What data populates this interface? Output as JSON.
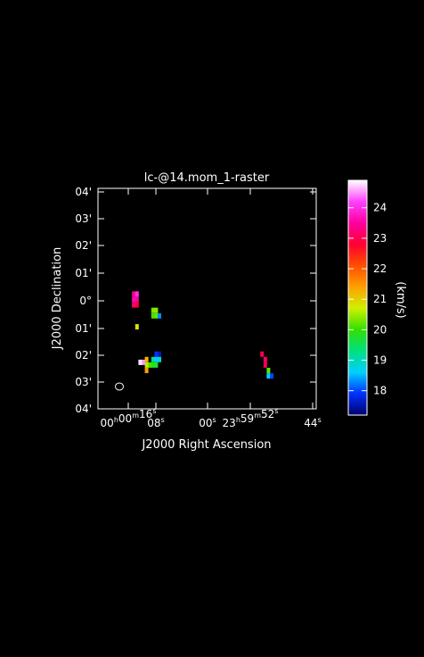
{
  "chart_data": {
    "type": "heatmap",
    "title": "lc-@14.mom_1-raster",
    "xlabel": "J2000 Right Ascension",
    "ylabel": "J2000 Declination",
    "x_ticks": [
      {
        "label": "00h00m16s"
      },
      {
        "label": "08s"
      },
      {
        "label": "00s"
      },
      {
        "label": "23h59m52s"
      },
      {
        "label": "44s"
      }
    ],
    "y_ticks": [
      "04'",
      "03'",
      "02'",
      "01'",
      "0°",
      "01'",
      "02'",
      "03'",
      "04'"
    ],
    "colorbar": {
      "label": "(km/s)",
      "range": [
        17.2,
        24.9
      ],
      "ticks": [
        18,
        19,
        20,
        21,
        22,
        23,
        24
      ],
      "stops": [
        "#00006a",
        "#0030ff",
        "#00d0ff",
        "#00e080",
        "#30e000",
        "#d0f000",
        "#ffa000",
        "#ff5000",
        "#ff0030",
        "#ff00a0",
        "#ff40ff",
        "#ffffff"
      ]
    },
    "beam": {
      "shape": "ellipse"
    },
    "pixels": [
      {
        "ra": 13.8,
        "dec": 0.25,
        "v": 23.4
      },
      {
        "ra": 13.8,
        "dec": 0.05,
        "v": 23.6
      },
      {
        "ra": 13.8,
        "dec": -0.15,
        "v": 23.2
      },
      {
        "ra": 13.2,
        "dec": 0.25,
        "v": 24.0
      },
      {
        "ra": 13.2,
        "dec": 0.05,
        "v": 23.5
      },
      {
        "ra": 13.2,
        "dec": -0.15,
        "v": 22.8
      },
      {
        "ra": 13.2,
        "dec": -0.95,
        "v": 20.8
      },
      {
        "ra": 10.2,
        "dec": -0.35,
        "v": 20.3
      },
      {
        "ra": 9.6,
        "dec": -0.35,
        "v": 20.4
      },
      {
        "ra": 9.6,
        "dec": -0.55,
        "v": 20.2
      },
      {
        "ra": 10.2,
        "dec": -0.55,
        "v": 20.1
      },
      {
        "ra": 9.0,
        "dec": -0.55,
        "v": 18.3
      },
      {
        "ra": 9.0,
        "dec": -1.95,
        "v": 17.6
      },
      {
        "ra": 9.6,
        "dec": -1.95,
        "v": 17.9
      },
      {
        "ra": 9.0,
        "dec": -2.15,
        "v": 18.9
      },
      {
        "ra": 9.6,
        "dec": -2.15,
        "v": 18.6
      },
      {
        "ra": 10.2,
        "dec": -2.15,
        "v": 19.2
      },
      {
        "ra": 10.2,
        "dec": -2.35,
        "v": 19.9
      },
      {
        "ra": 10.8,
        "dec": -2.35,
        "v": 20.1
      },
      {
        "ra": 11.4,
        "dec": -2.15,
        "v": 21.2
      },
      {
        "ra": 11.4,
        "dec": -2.35,
        "v": 20.6
      },
      {
        "ra": 12.0,
        "dec": -2.25,
        "v": 24.5
      },
      {
        "ra": 12.6,
        "dec": -2.25,
        "v": 24.8
      },
      {
        "ra": 11.4,
        "dec": -2.55,
        "v": 21.4
      },
      {
        "ra": 9.6,
        "dec": -2.35,
        "v": 19.7
      },
      {
        "ra": -10.2,
        "dec": -1.95,
        "v": 23.0
      },
      {
        "ra": -10.8,
        "dec": -2.15,
        "v": 23.2
      },
      {
        "ra": -10.8,
        "dec": -2.35,
        "v": 23.0
      },
      {
        "ra": -11.4,
        "dec": -2.55,
        "v": 20.2
      },
      {
        "ra": -11.4,
        "dec": -2.75,
        "v": 18.6
      },
      {
        "ra": -12.0,
        "dec": -2.75,
        "v": 18.0
      }
    ]
  }
}
